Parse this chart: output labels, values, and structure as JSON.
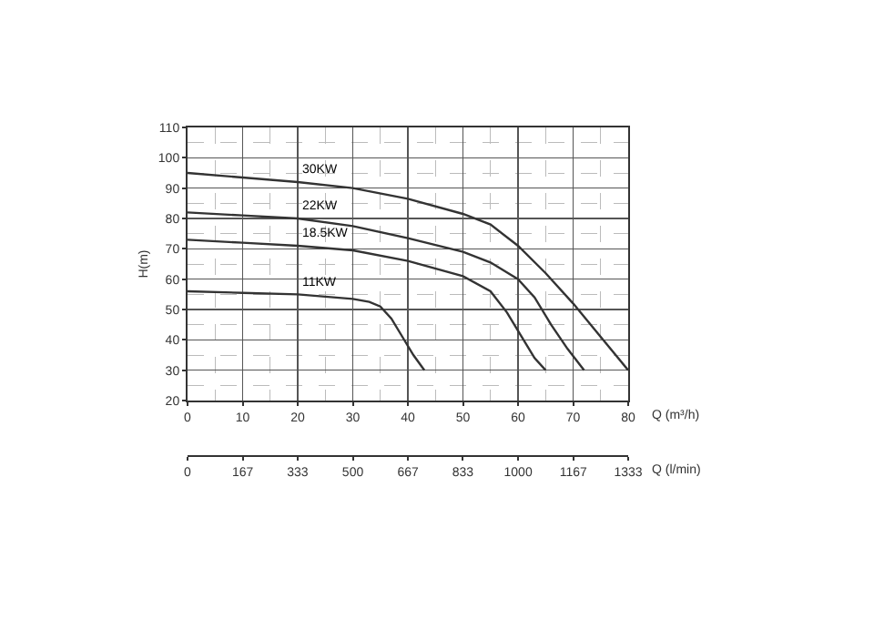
{
  "chart_data": {
    "type": "line",
    "xlabel": "Q (m³/h)",
    "ylabel": "H(m)",
    "x2label": "Q (l/min)",
    "xlim": [
      0,
      80
    ],
    "xticks": [
      0,
      10,
      20,
      30,
      40,
      50,
      60,
      70,
      80
    ],
    "x2lim": [
      0,
      1333
    ],
    "x2ticks": [
      0,
      167,
      333,
      500,
      667,
      833,
      1000,
      1167,
      1333
    ],
    "ylim": [
      20,
      110
    ],
    "yticks": [
      20,
      30,
      40,
      50,
      60,
      70,
      80,
      90,
      100,
      110
    ],
    "grid": true,
    "legend": false,
    "marker": "none",
    "line_style": "solid",
    "series": [
      {
        "name": "30KW",
        "color": "#333333",
        "x": [
          0,
          10,
          20,
          30,
          40,
          50,
          55,
          60,
          65,
          70,
          75,
          80
        ],
        "values": [
          95,
          93.5,
          92,
          90,
          86.5,
          81.5,
          78,
          71,
          62,
          52,
          41,
          30
        ]
      },
      {
        "name": "22KW",
        "color": "#333333",
        "x": [
          0,
          10,
          20,
          30,
          40,
          50,
          55,
          60,
          63,
          66,
          69,
          72
        ],
        "values": [
          82,
          81,
          80,
          77.5,
          73.5,
          69,
          65.5,
          60,
          54,
          45,
          37,
          30
        ]
      },
      {
        "name": "18.5KW",
        "color": "#333333",
        "x": [
          0,
          10,
          20,
          30,
          40,
          50,
          55,
          58,
          61,
          63,
          65
        ],
        "values": [
          73,
          72,
          71,
          69.5,
          66,
          61,
          56,
          49,
          40,
          34,
          30
        ]
      },
      {
        "name": "11KW",
        "color": "#333333",
        "x": [
          0,
          10,
          20,
          30,
          33,
          35,
          37,
          39,
          41,
          43
        ],
        "values": [
          56,
          55.5,
          55,
          53.5,
          52.5,
          51,
          47,
          41,
          35,
          30
        ]
      }
    ]
  }
}
